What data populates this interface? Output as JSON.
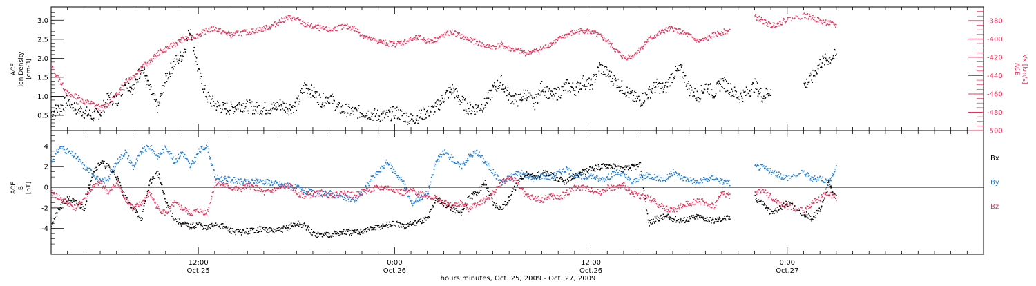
{
  "x_axis": {
    "ticks": [
      {
        "time": "12:00",
        "date": "Oct.25"
      },
      {
        "time": "0:00",
        "date": "Oct.26"
      },
      {
        "time": "12:00",
        "date": "Oct.26"
      },
      {
        "time": "0:00",
        "date": "Oct.27"
      }
    ],
    "label": "hours:minutes, Oct. 25, 2009 - Oct. 27, 2009"
  },
  "colors": {
    "black": "#000000",
    "pink": "#e8305a",
    "blue": "#1a7ed8"
  },
  "chart_data": [
    {
      "type": "scatter",
      "panel": "top",
      "title": "",
      "time_range": [
        "2009-10-25 03:00",
        "2009-10-27 12:00"
      ],
      "ylabel_left": [
        "ACE",
        "Ion Density",
        "[cm-3]"
      ],
      "ylabel_right": [
        "ACE",
        "Vx [km/s]"
      ],
      "yticks_left": [
        "0.5",
        "1.0",
        "1.5",
        "2.0",
        "2.5",
        "3.0"
      ],
      "ylim_left": [
        0.1,
        3.35
      ],
      "yticks_right": [
        "-380",
        "-400",
        "-420",
        "-440",
        "-460",
        "-480",
        "-500"
      ],
      "ylim_right": [
        -500,
        -365
      ],
      "series": [
        {
          "axis": "left",
          "color": "#000000",
          "x_hours": [
            0,
            0.5,
            1,
            1.5,
            2,
            2.5,
            3,
            3.5,
            4,
            4.5,
            5,
            5.5,
            6,
            6.5,
            7,
            7.5,
            8,
            8.5,
            9,
            9.5,
            10,
            10.5,
            11,
            11.5,
            12,
            12.5,
            13,
            13.5,
            14,
            14.5,
            15,
            15.5,
            16,
            16.5,
            17,
            17.5,
            18,
            18.5,
            19,
            19.5,
            20,
            20.5,
            21,
            21.5,
            22,
            22.5,
            23,
            23.5,
            24,
            24.5,
            25,
            25.5,
            26,
            26.5,
            27,
            27.5,
            28,
            28.5,
            29,
            29.5,
            30,
            30.5,
            31,
            31.5,
            32,
            32.5,
            33,
            33.5,
            34,
            34.5,
            35,
            35.5,
            36,
            36.5,
            37,
            37.5,
            38,
            38.5,
            39,
            39.5,
            40,
            40.5,
            41,
            41.5,
            42,
            42.5,
            43,
            43.5,
            44,
            44.5,
            45,
            46,
            46.5,
            47,
            47.5,
            48
          ],
          "values": [
            0.6,
            0.7,
            0.9,
            0.7,
            0.6,
            0.5,
            0.6,
            1.0,
            0.9,
            1.4,
            1.2,
            1.8,
            1.2,
            0.7,
            1.5,
            1.9,
            2.1,
            2.8,
            1.6,
            1.0,
            0.8,
            0.7,
            0.7,
            0.8,
            0.75,
            0.7,
            0.7,
            0.7,
            0.8,
            0.7,
            0.8,
            1.3,
            1.1,
            0.9,
            1.0,
            0.7,
            0.65,
            0.6,
            0.6,
            0.55,
            0.5,
            0.5,
            0.6,
            0.5,
            0.4,
            0.5,
            0.6,
            0.7,
            1.0,
            1.2,
            0.9,
            0.7,
            0.7,
            0.8,
            1.2,
            1.4,
            1.0,
            0.9,
            1.1,
            0.8,
            1.3,
            1.0,
            1.1,
            1.3,
            1.2,
            1.4,
            1.3,
            1.8,
            1.6,
            1.4,
            1.2,
            1.0,
            0.9,
            1.1,
            1.3,
            1.2,
            1.6,
            1.7,
            1.2,
            1.0,
            1.3,
            1.1,
            1.4,
            1.2,
            1.0,
            1.1,
            1.3,
            1.0,
            1.2,
            null,
            null,
            1.3,
            1.5,
            1.9,
            2.0,
            2.1
          ]
        },
        {
          "axis": "right",
          "color": "#e8305a",
          "x_hours": [
            0,
            0.5,
            1,
            1.5,
            2,
            2.5,
            3,
            3.5,
            4,
            4.5,
            5,
            5.5,
            6,
            6.5,
            7,
            7.5,
            8,
            8.5,
            9,
            9.5,
            10,
            10.5,
            11,
            11.5,
            12,
            12.5,
            13,
            13.5,
            14,
            14.5,
            15,
            15.5,
            16,
            16.5,
            17,
            17.5,
            18,
            18.5,
            19,
            19.5,
            20,
            20.5,
            21,
            21.5,
            22,
            22.5,
            23,
            23.5,
            24,
            24.5,
            25,
            25.5,
            26,
            26.5,
            27,
            27.5,
            28,
            28.5,
            29,
            29.5,
            30,
            30.5,
            31,
            31.5,
            32,
            32.5,
            33,
            33.5,
            34,
            34.5,
            35,
            35.5,
            36,
            36.5,
            37,
            37.5,
            38,
            38.5,
            39,
            39.5,
            40,
            40.5,
            41,
            41.5,
            42,
            42.5,
            43,
            43.5,
            44,
            44.5,
            45,
            46,
            46.5,
            47,
            47.5,
            48
          ],
          "values": [
            -430,
            -445,
            -460,
            -462,
            -468,
            -470,
            -475,
            -470,
            -460,
            -445,
            -440,
            -430,
            -425,
            -415,
            -410,
            -405,
            -400,
            -398,
            -395,
            -390,
            -388,
            -392,
            -395,
            -393,
            -392,
            -390,
            -388,
            -385,
            -380,
            -376,
            -378,
            -384,
            -386,
            -388,
            -390,
            -387,
            -386,
            -388,
            -395,
            -400,
            -402,
            -404,
            -405,
            -403,
            -400,
            -398,
            -402,
            -400,
            -395,
            -392,
            -396,
            -400,
            -403,
            -407,
            -408,
            -406,
            -410,
            -412,
            -415,
            -413,
            -410,
            -405,
            -400,
            -395,
            -392,
            -390,
            -392,
            -396,
            -402,
            -412,
            -420,
            -418,
            -410,
            -400,
            -395,
            -390,
            -388,
            -392,
            -396,
            -402,
            -400,
            -395,
            -392,
            -390,
            null,
            null,
            -375,
            -380,
            -385,
            -382,
            -378,
            -374,
            -376,
            -380,
            -382,
            -385
          ]
        }
      ]
    },
    {
      "type": "scatter",
      "panel": "bottom",
      "title": "",
      "time_range": [
        "2009-10-25 03:00",
        "2009-10-27 12:00"
      ],
      "ylabel_left": [
        "ACE",
        "B",
        "[nT]"
      ],
      "yticks_left": [
        "-4",
        "-2",
        "0",
        "2",
        "4"
      ],
      "ylim_left": [
        -6.5,
        5.5
      ],
      "legend": [
        "Bx",
        "By",
        "Bz"
      ],
      "legend_placement": "right",
      "series": [
        {
          "name": "Bx",
          "color": "#000000",
          "x_hours": [
            0,
            0.5,
            1,
            1.5,
            2,
            2.5,
            3,
            3.5,
            4,
            4.5,
            5,
            5.5,
            6,
            6.5,
            7,
            7.5,
            8,
            8.5,
            9,
            9.5,
            10,
            10.5,
            11,
            11.5,
            12,
            12.5,
            13,
            13.5,
            14,
            14.5,
            15,
            15.5,
            16,
            16.5,
            17,
            17.5,
            18,
            18.5,
            19,
            19.5,
            20,
            20.5,
            21,
            21.5,
            22,
            22.5,
            23,
            23.5,
            24,
            24.5,
            25,
            25.5,
            26,
            26.5,
            27,
            27.5,
            28,
            28.5,
            29,
            29.5,
            30,
            30.5,
            31,
            31.5,
            32,
            32.5,
            33,
            33.5,
            34,
            34.5,
            35,
            35.5,
            36,
            36.5,
            37,
            37.5,
            38,
            38.5,
            39,
            39.5,
            40,
            40.5,
            41,
            41.5,
            42,
            42.5,
            43,
            43.5,
            44,
            44.5,
            45,
            46,
            46.5,
            47,
            47.5,
            48
          ],
          "values": [
            -3.5,
            -2,
            -1,
            -1.5,
            -2,
            1.5,
            2.5,
            2,
            1,
            -1,
            -2,
            -3,
            0.5,
            1.5,
            -1.5,
            -3,
            -3.5,
            -3.8,
            -3.5,
            -4,
            -3.5,
            -3.8,
            -4.2,
            -4.3,
            -4.2,
            -4.1,
            -4.0,
            -4.2,
            -4.1,
            -3.8,
            -3.5,
            -3.7,
            -4.5,
            -4.6,
            -4.5,
            -4.4,
            -4.3,
            -4.4,
            -4.2,
            -4.0,
            -3.8,
            -3.6,
            -3.5,
            -3.8,
            -3.5,
            -3.2,
            -3.0,
            -1,
            -1.5,
            -2,
            -2.5,
            -1,
            -0.5,
            0.5,
            -1.5,
            -2,
            -1,
            0.5,
            1.5,
            1,
            1.5,
            1.2,
            0.8,
            0.5,
            1.2,
            1.5,
            1.8,
            2.0,
            2.2,
            2.0,
            1.8,
            2.0,
            2.2,
            -3.5,
            -3.0,
            -2.8,
            -3.0,
            -3.2,
            -3.0,
            -2.8,
            -3.0,
            -3.2,
            -3.0,
            -2.9,
            null,
            null,
            -1,
            -1.5,
            -2.5,
            -2.0,
            -1.5,
            -2.5,
            -3.0,
            -2.0,
            0.5,
            -1.0
          ]
        },
        {
          "name": "By",
          "color": "#1a7ed8",
          "x_hours": [
            0,
            0.5,
            1,
            1.5,
            2,
            2.5,
            3,
            3.5,
            4,
            4.5,
            5,
            5.5,
            6,
            6.5,
            7,
            7.5,
            8,
            8.5,
            9,
            9.5,
            10,
            10.5,
            11,
            11.5,
            12,
            12.5,
            13,
            13.5,
            14,
            14.5,
            15,
            15.5,
            16,
            16.5,
            17,
            17.5,
            18,
            18.5,
            19,
            19.5,
            20,
            20.5,
            21,
            21.5,
            22,
            22.5,
            23,
            23.5,
            24,
            24.5,
            25,
            25.5,
            26,
            26.5,
            27,
            27.5,
            28,
            28.5,
            29,
            29.5,
            30,
            30.5,
            31,
            31.5,
            32,
            32.5,
            33,
            33.5,
            34,
            34.5,
            35,
            35.5,
            36,
            36.5,
            37,
            37.5,
            38,
            38.5,
            39,
            39.5,
            40,
            40.5,
            41,
            41.5,
            42,
            42.5,
            43,
            43.5,
            44,
            44.5,
            45,
            46,
            46.5,
            47,
            47.5,
            48
          ],
          "values": [
            2.5,
            4,
            3.5,
            3,
            2,
            1.5,
            0.5,
            1,
            2.5,
            3.5,
            2,
            3.5,
            4,
            3,
            4,
            2.5,
            3.5,
            2,
            3.5,
            4.2,
            1,
            0.8,
            0.8,
            0.6,
            0.5,
            0.7,
            0.6,
            0.5,
            0.3,
            0.2,
            0,
            -0.3,
            -0.5,
            -0.6,
            -0.5,
            -0.8,
            -1,
            -1.2,
            -0.5,
            0.8,
            1.5,
            2.5,
            1.5,
            0.5,
            -1.5,
            -1,
            -0.5,
            2.5,
            3.5,
            2.8,
            2,
            3,
            3.5,
            2.5,
            1.5,
            0.5,
            1,
            1.5,
            1.2,
            0.8,
            1.2,
            1.0,
            1.5,
            1.8,
            1.2,
            1.0,
            1.2,
            0.8,
            1.0,
            1.5,
            1.2,
            0.5,
            1.0,
            1.2,
            1.0,
            0.8,
            1.5,
            1.0,
            0.8,
            0.5,
            0.8,
            1.0,
            0.6,
            0.5,
            null,
            null,
            2.0,
            2.0,
            1.5,
            1.2,
            1.0,
            1.5,
            0.8,
            1.0,
            0.5,
            2.0
          ]
        },
        {
          "name": "Bz",
          "color": "#e8305a",
          "x_hours": [
            0,
            0.5,
            1,
            1.5,
            2,
            2.5,
            3,
            3.5,
            4,
            4.5,
            5,
            5.5,
            6,
            6.5,
            7,
            7.5,
            8,
            8.5,
            9,
            9.5,
            10,
            10.5,
            11,
            11.5,
            12,
            12.5,
            13,
            13.5,
            14,
            14.5,
            15,
            15.5,
            16,
            16.5,
            17,
            17.5,
            18,
            18.5,
            19,
            19.5,
            20,
            20.5,
            21,
            21.5,
            22,
            22.5,
            23,
            23.5,
            24,
            24.5,
            25,
            25.5,
            26,
            26.5,
            27,
            27.5,
            28,
            28.5,
            29,
            29.5,
            30,
            30.5,
            31,
            31.5,
            32,
            32.5,
            33,
            33.5,
            34,
            34.5,
            35,
            35.5,
            36,
            36.5,
            37,
            37.5,
            38,
            38.5,
            39,
            39.5,
            40,
            40.5,
            41,
            41.5,
            42,
            42.5,
            43,
            43.5,
            44,
            44.5,
            45,
            46,
            46.5,
            47,
            47.5,
            48
          ],
          "values": [
            -0.5,
            -1,
            -1.5,
            -2,
            -1,
            0,
            0.5,
            -0.5,
            0.5,
            -1,
            -2,
            -1.5,
            -0.5,
            -2,
            -2.5,
            -1.5,
            -2,
            -2.5,
            -2.2,
            -2.5,
            0.5,
            0.3,
            0,
            -0.2,
            0.2,
            0,
            -0.5,
            -0.3,
            0,
            0.2,
            -0.5,
            -0.8,
            -0.6,
            -0.5,
            -0.7,
            -0.6,
            -0.5,
            -0.8,
            -0.4,
            -0.2,
            0,
            0,
            -0.2,
            -0.5,
            -0.3,
            -0.5,
            -0.8,
            -1.0,
            -1.5,
            -1.8,
            -1.5,
            -2,
            -1.5,
            -1.2,
            -0.5,
            0.5,
            1.0,
            0.5,
            -0.8,
            -1.0,
            -1.2,
            -0.8,
            -1.0,
            -0.5,
            0,
            0,
            -0.2,
            -0.5,
            0,
            0,
            0.2,
            -0.5,
            -0.8,
            -1.0,
            -1.5,
            -2.0,
            -2.2,
            -1.8,
            -1.5,
            -1.2,
            -1.5,
            -1.8,
            -0.5,
            -0.8,
            null,
            null,
            -0.5,
            -0.2,
            -1.0,
            -1.5,
            -1.8,
            -2.2,
            -1.5,
            -1.0,
            -0.5,
            -1.0
          ]
        }
      ]
    }
  ]
}
